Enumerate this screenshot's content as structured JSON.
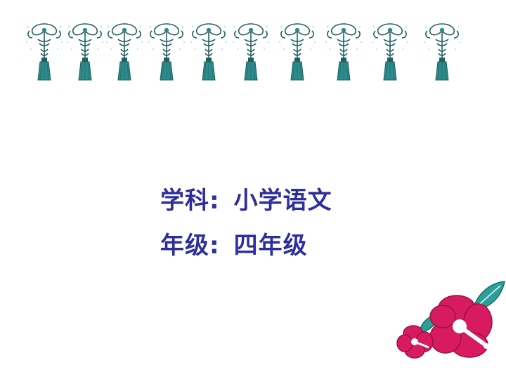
{
  "decoration": {
    "tassel_icon": "tassel-ornament-icon",
    "tassel_count": 10,
    "flower_icon": "hibiscus-flower-icon",
    "colors": {
      "text": "#2f2f9a",
      "tassel": "#2e8b8b",
      "tassel_knot": "#1f5f5f",
      "flower": "#d81b60",
      "leaf": "#2aa198"
    }
  },
  "info": {
    "subject_label": "学科:",
    "subject_value": "小学语文",
    "grade_label": "年级:",
    "grade_value": "四年级"
  }
}
